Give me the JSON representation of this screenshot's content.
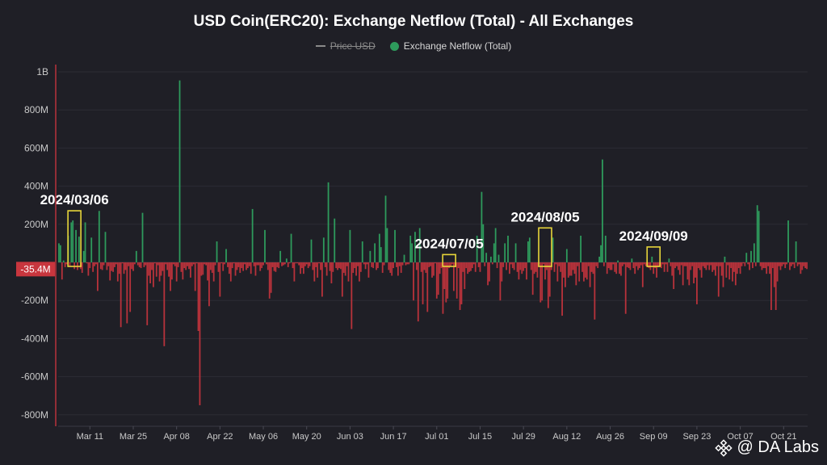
{
  "chart_data": {
    "type": "bar",
    "title": "USD Coin(ERC20): Exchange Netflow (Total) - All Exchanges",
    "legend": [
      {
        "name": "Price USD",
        "visible": false,
        "color": "#8a8a8a"
      },
      {
        "name": "Exchange Netflow (Total)",
        "visible": true,
        "color": "#2e9a5c"
      }
    ],
    "y_ticks": [
      {
        "label": "1B",
        "value": 1000
      },
      {
        "label": "800M",
        "value": 800
      },
      {
        "label": "600M",
        "value": 600
      },
      {
        "label": "400M",
        "value": 400
      },
      {
        "label": "200M",
        "value": 200
      },
      {
        "label": "-200M",
        "value": -200
      },
      {
        "label": "-400M",
        "value": -400
      },
      {
        "label": "-600M",
        "value": -600
      },
      {
        "label": "-800M",
        "value": -800
      }
    ],
    "ylim": [
      -830,
      1000
    ],
    "unit": "millions USD",
    "current_value_label": "-35.4M",
    "current_value": -35.4,
    "x_ticks": [
      "Mar 11",
      "Mar 25",
      "Apr 08",
      "Apr 22",
      "May 06",
      "May 20",
      "Jun 03",
      "Jun 17",
      "Jul 01",
      "Jul 15",
      "Jul 29",
      "Aug 12",
      "Aug 26",
      "Sep 09",
      "Sep 23",
      "Oct 07",
      "Oct 21"
    ],
    "x_start": "2024-03-01",
    "values": [
      100,
      90,
      -90,
      10,
      -25,
      -10,
      140,
      -20,
      210,
      220,
      -35,
      170,
      -40,
      135,
      -35,
      -55,
      60,
      210,
      -5,
      -70,
      -30,
      130,
      -50,
      -20,
      -10,
      -150,
      270,
      -35,
      -40,
      -15,
      160,
      -40,
      -20,
      -95,
      -45,
      -50,
      -25,
      -10,
      -100,
      -60,
      -340,
      -5,
      -60,
      -40,
      -320,
      -20,
      -260,
      -35,
      -45,
      -10,
      60,
      -15,
      -25,
      -30,
      260,
      -25,
      -15,
      -330,
      -70,
      -110,
      -40,
      -130,
      -5,
      -75,
      -15,
      -100,
      -70,
      -45,
      -440,
      -10,
      -40,
      -75,
      -150,
      -90,
      -10,
      -20,
      -100,
      -25,
      955,
      -50,
      -90,
      -30,
      -40,
      -20,
      -35,
      -80,
      -20,
      -10,
      -150,
      -5,
      -360,
      -750,
      -70,
      -65,
      -10,
      -15,
      -95,
      -230,
      -40,
      -55,
      -100,
      -15,
      110,
      -50,
      -180,
      -5,
      -45,
      -10,
      70,
      -25,
      -60,
      -100,
      -30,
      -5,
      -70,
      -40,
      -25,
      -55,
      -30,
      -45,
      -10,
      -40,
      -30,
      -20,
      -60,
      280,
      -20,
      -70,
      -15,
      -15,
      -45,
      -30,
      -15,
      170,
      -10,
      -40,
      -190,
      -160,
      -25,
      -45,
      -50,
      -25,
      -30,
      60,
      -20,
      -15,
      -10,
      20,
      -25,
      -5,
      150,
      -30,
      -100,
      -5,
      -5,
      -15,
      -60,
      -30,
      -60,
      -20,
      -10,
      -30,
      -20,
      120,
      -40,
      -100,
      -25,
      -80,
      -5,
      -40,
      -180,
      130,
      -25,
      -70,
      420,
      -45,
      -110,
      -50,
      230,
      -30,
      -40,
      -30,
      -35,
      -180,
      -55,
      -70,
      -20,
      -100,
      170,
      -350,
      -55,
      -30,
      -70,
      -20,
      -100,
      -50,
      110,
      -10,
      -35,
      -10,
      -80,
      60,
      -25,
      -30,
      100,
      -40,
      -30,
      150,
      80,
      -55,
      -15,
      350,
      180,
      -40,
      -55,
      -70,
      -30,
      170,
      -25,
      -70,
      -20,
      -55,
      -15,
      40,
      -15,
      -10,
      -10,
      140,
      100,
      -200,
      160,
      -40,
      -310,
      180,
      -50,
      -220,
      -40,
      -55,
      -260,
      -25,
      -20,
      -80,
      -70,
      -5,
      -190,
      -170,
      -60,
      -30,
      -270,
      -140,
      -210,
      -190,
      -30,
      -20,
      -10,
      -150,
      -25,
      -190,
      -30,
      -250,
      -220,
      -50,
      -140,
      -30,
      -60,
      -50,
      -45,
      -30,
      -10,
      -50,
      140,
      -25,
      -50,
      370,
      200,
      -20,
      50,
      -120,
      -100,
      30,
      -10,
      100,
      180,
      -30,
      40,
      -200,
      -100,
      -25,
      100,
      -40,
      140,
      -60,
      -10,
      -30,
      -40,
      100,
      -50,
      -90,
      -40,
      -60,
      -45,
      -30,
      -90,
      110,
      130,
      -40,
      -170,
      -60,
      -50,
      -80,
      -10,
      -210,
      -200,
      -10,
      -90,
      -40,
      -240,
      -180,
      -40,
      130,
      -50,
      -10,
      -100,
      -20,
      -50,
      -280,
      -80,
      -130,
      70,
      -80,
      -70,
      -70,
      -40,
      -60,
      -120,
      -20,
      -100,
      140,
      -50,
      -100,
      -80,
      -90,
      -20,
      -130,
      -50,
      -60,
      -300,
      -20,
      -30,
      30,
      90,
      540,
      -20,
      140,
      -60,
      -30,
      -40,
      -40,
      -10,
      -50,
      -60,
      10,
      -60,
      -70,
      -20,
      -10,
      -270,
      -25,
      -30,
      -40,
      20,
      -30,
      -60,
      -20,
      -40,
      -30,
      -15,
      -130,
      -10,
      -20,
      -25,
      -30,
      -40,
      30,
      -60,
      -30,
      -80,
      -25,
      -20,
      -30,
      -10,
      -50,
      -10,
      -50,
      20,
      -20,
      -70,
      -140,
      -30,
      -20,
      -40,
      -65,
      -15,
      -120,
      -20,
      -20,
      -90,
      -120,
      -40,
      -20,
      -110,
      -80,
      -220,
      -30,
      -40,
      -80,
      -20,
      -30,
      -40,
      -15,
      -40,
      -15,
      -50,
      -40,
      -70,
      -20,
      -180,
      -20,
      -70,
      -130,
      30,
      -80,
      -15,
      -90,
      -30,
      -100,
      -50,
      -120,
      -60,
      -30,
      -60,
      -20,
      -5,
      -20,
      50,
      -10,
      -40,
      60,
      -30,
      100,
      -20,
      300,
      270,
      -20,
      -40,
      -30,
      -30,
      -60,
      -20,
      -60,
      -250,
      -30,
      -130,
      -250,
      -100,
      -20,
      -40,
      -20,
      -10,
      -30,
      -10,
      220,
      -40,
      -20,
      -10,
      -30,
      110,
      -20,
      -10,
      -60,
      -40,
      -20,
      -30,
      -35
    ],
    "annotations": [
      {
        "label": "2024/03/06"
      },
      {
        "label": "2024/07/05"
      },
      {
        "label": "2024/08/05"
      },
      {
        "label": "2024/09/09"
      }
    ]
  },
  "colors": {
    "positive": "#2e9a5c",
    "negative": "#b8323b",
    "annotation": "#e8d63a",
    "grid": "#2c2c34",
    "axis_text": "#c9c9c9",
    "current_label_bg": "#c8363e"
  },
  "watermark": {
    "text": "@ DA Labs",
    "icon": "binance-diamond-icon"
  }
}
